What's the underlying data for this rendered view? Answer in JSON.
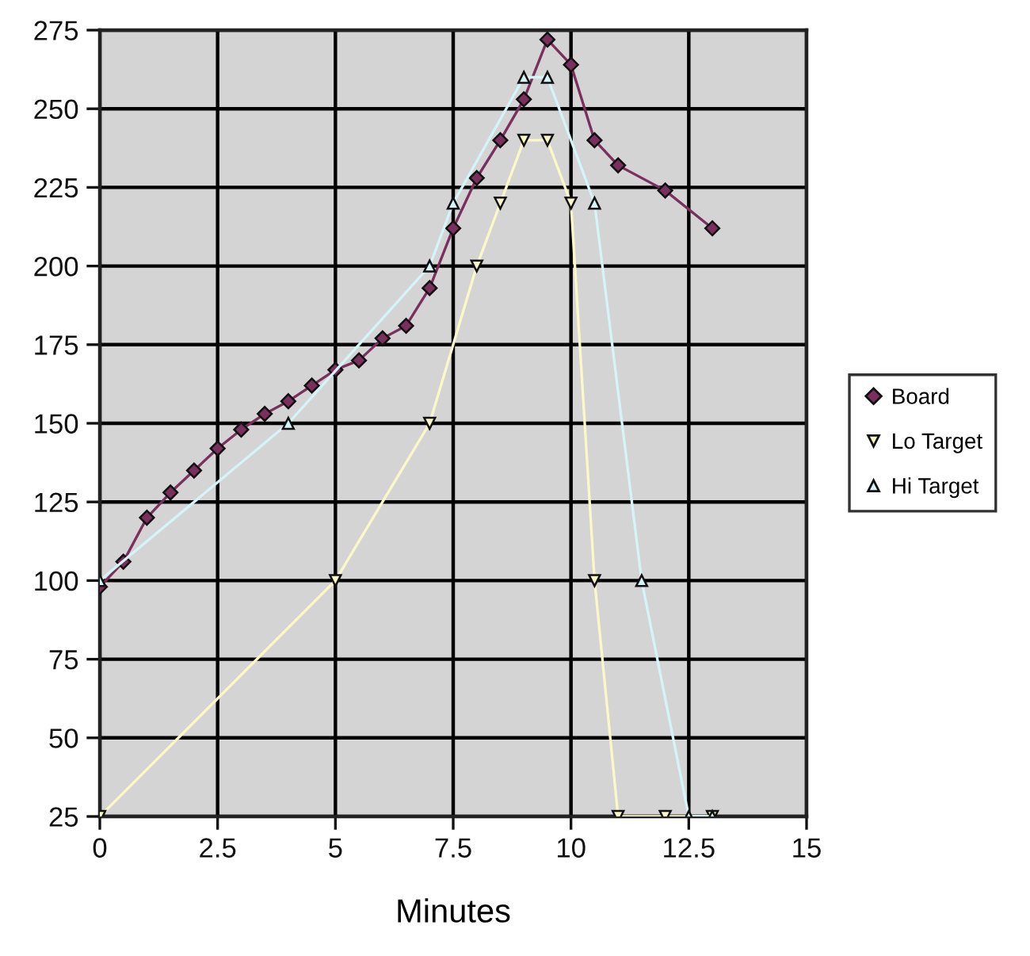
{
  "chart_data": {
    "type": "line",
    "xlabel": "Minutes",
    "xlim": [
      0,
      15
    ],
    "xticks": [
      0,
      2.5,
      5,
      7.5,
      10,
      12.5,
      15
    ],
    "ylim": [
      25,
      275
    ],
    "yticks": [
      25,
      50,
      75,
      100,
      125,
      150,
      175,
      200,
      225,
      250,
      275
    ],
    "grid": true,
    "legend": "right",
    "line_style": "solid",
    "series": [
      {
        "name": "Board",
        "color": "#7a2f5c",
        "marker": "diamond",
        "x": [
          0,
          0.5,
          1,
          1.5,
          2,
          2.5,
          3,
          3.5,
          4,
          4.5,
          5,
          5.5,
          6,
          6.5,
          7,
          7.5,
          8,
          8.5,
          9,
          9.5,
          10,
          10.5,
          11,
          12,
          13
        ],
        "values": [
          98,
          106,
          120,
          128,
          135,
          142,
          148,
          153,
          157,
          162,
          167,
          170,
          177,
          181,
          193,
          212,
          228,
          240,
          253,
          272,
          264,
          240,
          232,
          224,
          212
        ]
      },
      {
        "name": "Lo Target",
        "color": "#fbf8c8",
        "marker": "triangle_down",
        "x": [
          0,
          5,
          7,
          8,
          8.5,
          9,
          9.5,
          10,
          10.5,
          11,
          12,
          13
        ],
        "values": [
          25,
          100,
          150,
          200,
          220,
          240,
          240,
          220,
          100,
          25,
          25,
          25
        ]
      },
      {
        "name": "Hi Target",
        "color": "#d4f4f8",
        "marker": "triangle",
        "x": [
          0,
          4,
          7,
          7.5,
          9,
          9.5,
          10.5,
          11.5,
          12.5,
          13
        ],
        "values": [
          100,
          150,
          200,
          220,
          260,
          260,
          220,
          100,
          25,
          25
        ]
      }
    ]
  }
}
